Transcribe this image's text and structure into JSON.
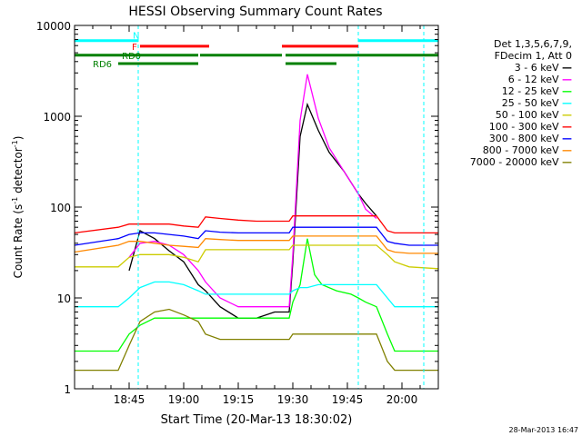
{
  "chart_data": {
    "type": "line",
    "title": "HESSI Observing Summary Count Rates",
    "xlabel": "Start Time (20-Mar-13 18:30:02)",
    "ylabel_main": "Count Rate (s",
    "ylabel_sup1": "-1",
    "ylabel_mid": " detector",
    "ylabel_sup2": "-1",
    "ylabel_end": ")",
    "footer_date": "28-Mar-2013 16:47",
    "x_ticks": [
      "18:45",
      "19:00",
      "19:15",
      "19:30",
      "19:45",
      "20:00"
    ],
    "x_tick_minutes": [
      15,
      30,
      45,
      60,
      75,
      90
    ],
    "x_range_minutes": [
      0,
      100
    ],
    "y_scale": "log",
    "y_range": [
      1,
      10000
    ],
    "y_ticks": [
      "1",
      "10",
      "100",
      "1000",
      "10000"
    ],
    "legend": {
      "header1": "Det 1,3,5,6,7,9,",
      "header2": "FDecim 1, Att 0"
    },
    "series": [
      {
        "name": "3 - 6 keV",
        "color": "#000000",
        "x": [
          0,
          12,
          15,
          18,
          22,
          26,
          30,
          34,
          36,
          40,
          45,
          50,
          55,
          59,
          60,
          62,
          64,
          67,
          70,
          74,
          78,
          80,
          83,
          86,
          88,
          92,
          100
        ],
        "y": [
          null,
          null,
          20,
          55,
          45,
          33,
          25,
          14,
          12,
          8,
          6,
          6,
          7,
          7,
          25,
          600,
          1350,
          700,
          400,
          250,
          140,
          110,
          80,
          null,
          null,
          null,
          null
        ]
      },
      {
        "name": "6 - 12 keV",
        "color": "#ff00ff",
        "x": [
          0,
          12,
          15,
          18,
          22,
          26,
          30,
          34,
          36,
          40,
          45,
          50,
          55,
          59,
          60,
          62,
          64,
          67,
          70,
          74,
          78,
          80,
          83,
          86,
          88,
          92,
          100
        ],
        "y": [
          null,
          null,
          28,
          40,
          42,
          38,
          30,
          20,
          15,
          10,
          8,
          8,
          8,
          8,
          30,
          900,
          2900,
          950,
          450,
          250,
          140,
          95,
          75,
          null,
          null,
          null,
          null
        ]
      },
      {
        "name": "12 - 25 keV",
        "color": "#00ff00",
        "x": [
          0,
          12,
          15,
          18,
          22,
          26,
          30,
          34,
          36,
          40,
          45,
          50,
          55,
          59,
          60,
          62,
          64,
          66,
          68,
          72,
          76,
          78,
          80,
          83,
          86,
          88,
          100
        ],
        "y": [
          2.6,
          2.6,
          4,
          5,
          6,
          6,
          6,
          6,
          6,
          6,
          6,
          6,
          6,
          6,
          9,
          14,
          45,
          18,
          14,
          12,
          11,
          10,
          9,
          8,
          4,
          2.6,
          2.6
        ]
      },
      {
        "name": "25 - 50 keV",
        "color": "#00ffff",
        "x": [
          0,
          12,
          15,
          18,
          22,
          26,
          30,
          34,
          36,
          40,
          45,
          50,
          55,
          59,
          60,
          62,
          64,
          67,
          70,
          74,
          78,
          80,
          83,
          86,
          88,
          92,
          100
        ],
        "y": [
          8,
          8,
          10,
          13,
          15,
          15,
          14,
          12,
          11,
          11,
          11,
          11,
          11,
          11,
          12,
          13,
          13,
          14,
          14,
          14,
          14,
          14,
          14,
          10,
          8,
          8,
          8
        ]
      },
      {
        "name": "50 - 100 keV",
        "color": "#cccc00",
        "x": [
          0,
          12,
          15,
          18,
          22,
          26,
          30,
          34,
          36,
          40,
          45,
          50,
          55,
          59,
          60,
          62,
          64,
          67,
          70,
          74,
          78,
          80,
          83,
          86,
          88,
          92,
          100
        ],
        "y": [
          22,
          22,
          28,
          30,
          30,
          30,
          28,
          25,
          34,
          34,
          34,
          34,
          34,
          34,
          38,
          38,
          38,
          38,
          38,
          38,
          38,
          38,
          38,
          30,
          25,
          22,
          21
        ]
      },
      {
        "name": "100 - 300 keV",
        "color": "#ff0000",
        "x": [
          0,
          12,
          15,
          18,
          22,
          26,
          30,
          34,
          36,
          40,
          45,
          50,
          55,
          59,
          60,
          62,
          64,
          67,
          70,
          74,
          78,
          80,
          83,
          86,
          88,
          92,
          100
        ],
        "y": [
          52,
          60,
          65,
          65,
          65,
          65,
          62,
          60,
          78,
          75,
          72,
          70,
          70,
          70,
          80,
          80,
          80,
          80,
          80,
          80,
          80,
          80,
          80,
          55,
          52,
          52,
          52
        ]
      },
      {
        "name": "300 - 800 keV",
        "color": "#0000ff",
        "x": [
          0,
          12,
          15,
          18,
          22,
          26,
          30,
          34,
          36,
          40,
          45,
          50,
          55,
          59,
          60,
          62,
          64,
          67,
          70,
          74,
          78,
          80,
          83,
          86,
          88,
          92,
          100
        ],
        "y": [
          38,
          45,
          50,
          52,
          52,
          50,
          48,
          45,
          55,
          53,
          52,
          52,
          52,
          52,
          60,
          60,
          60,
          60,
          60,
          60,
          60,
          60,
          60,
          42,
          40,
          38,
          38
        ]
      },
      {
        "name": "800 - 7000 keV",
        "color": "#ff8800",
        "x": [
          0,
          12,
          15,
          18,
          22,
          26,
          30,
          34,
          36,
          40,
          45,
          50,
          55,
          59,
          60,
          62,
          64,
          67,
          70,
          74,
          78,
          80,
          83,
          86,
          88,
          92,
          100
        ],
        "y": [
          32,
          38,
          42,
          42,
          40,
          38,
          37,
          36,
          45,
          44,
          43,
          43,
          43,
          43,
          48,
          48,
          48,
          48,
          48,
          48,
          48,
          48,
          48,
          34,
          32,
          31,
          31
        ]
      },
      {
        "name": "7000 - 20000 keV",
        "color": "#808000",
        "x": [
          0,
          12,
          15,
          18,
          22,
          26,
          30,
          34,
          36,
          40,
          45,
          50,
          55,
          59,
          60,
          62,
          64,
          67,
          70,
          74,
          78,
          80,
          83,
          86,
          88,
          92,
          100
        ],
        "y": [
          1.6,
          1.6,
          3,
          5.5,
          7,
          7.5,
          6.5,
          5.5,
          4,
          3.5,
          3.5,
          3.5,
          3.5,
          3.5,
          4,
          4,
          4,
          4,
          4,
          4,
          4,
          4,
          4,
          2,
          1.6,
          1.6,
          1.6
        ]
      }
    ],
    "flags": [
      {
        "label": "N",
        "color": "#00ffff",
        "level": 6800,
        "segments": [
          [
            0,
            17.5
          ],
          [
            78,
            100
          ]
        ]
      },
      {
        "label": "F",
        "color": "#ff0000",
        "level": 5900,
        "segments": [
          [
            18,
            37
          ],
          [
            57,
            78
          ]
        ]
      },
      {
        "label": "RD0",
        "color": "#008000",
        "level": 4700,
        "segments": [
          [
            0,
            34
          ],
          [
            34.5,
            57
          ],
          [
            58,
            100
          ]
        ]
      },
      {
        "label": "RD6",
        "color": "#008000",
        "level": 3800,
        "segments": [
          [
            12,
            34
          ],
          [
            58,
            72
          ]
        ]
      }
    ],
    "vertical_markers_minutes": [
      17.5,
      78,
      96
    ]
  }
}
